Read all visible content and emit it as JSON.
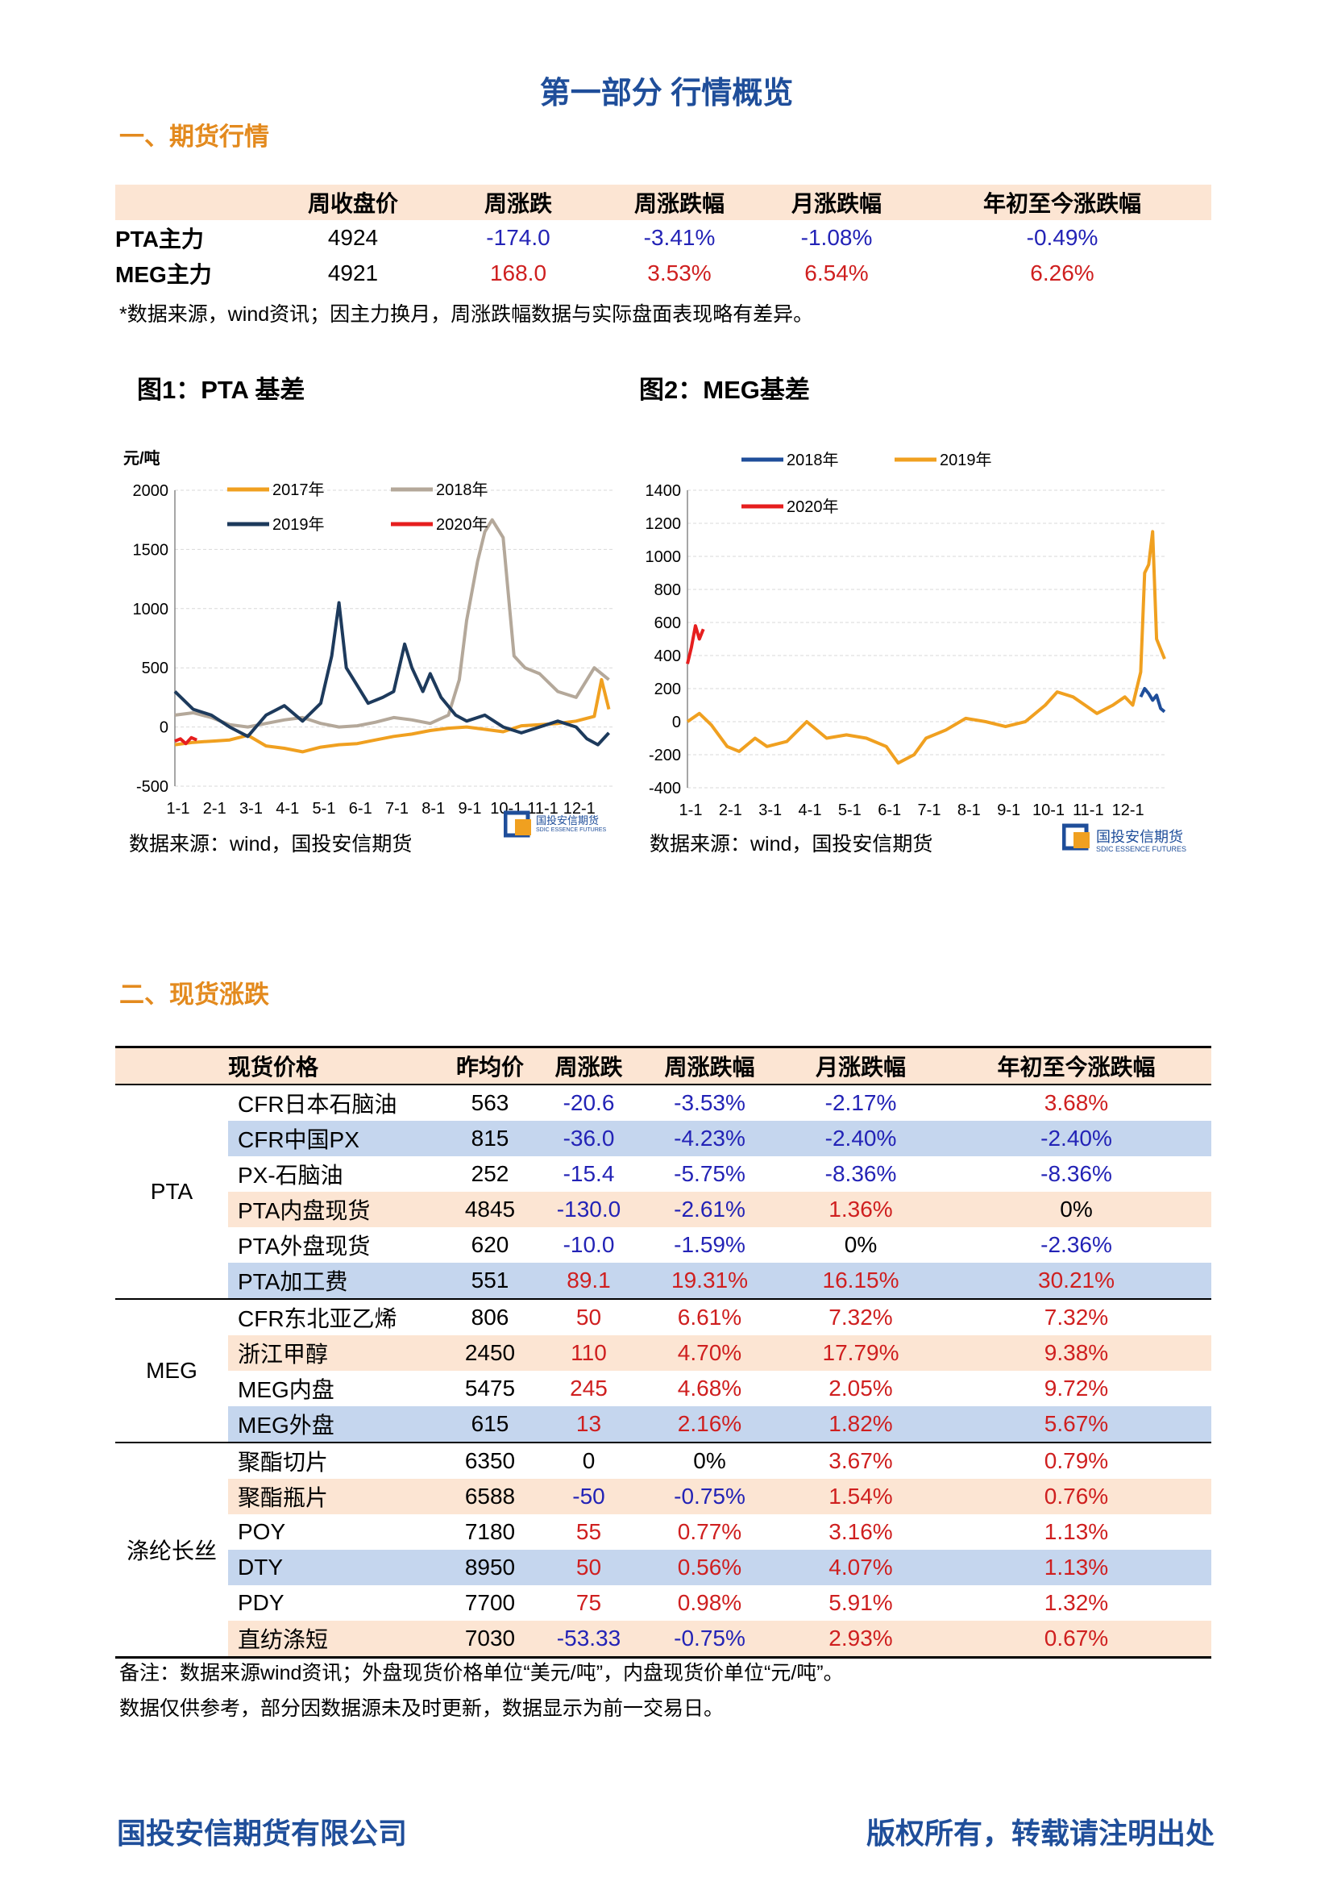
{
  "page": {
    "part_title": "第一部分  行情概览",
    "section1_title": "一、期货行情",
    "section2_title": "二、现货涨跌",
    "footer_left": "国投安信期货有限公司",
    "footer_right": "版权所有，转载请注明出处"
  },
  "futures": {
    "headers": [
      "",
      "周收盘价",
      "周涨跌",
      "周涨跌幅",
      "月涨跌幅",
      "年初至今涨跌幅"
    ],
    "rows": [
      {
        "name": "PTA主力",
        "close": "4924",
        "chg": "-174.0",
        "chg_pct": "-3.41%",
        "mon_pct": "-1.08%",
        "ytd_pct": "-0.49%"
      },
      {
        "name": "MEG主力",
        "close": "4921",
        "chg": "168.0",
        "chg_pct": "3.53%",
        "mon_pct": "6.54%",
        "ytd_pct": "6.26%"
      }
    ],
    "note": "*数据来源，wind资讯；因主力换月，周涨跌幅数据与实际盘面表现略有差异。"
  },
  "figures": {
    "fig1_title": "图1：PTA 基差",
    "fig2_title": "图2：MEG基差",
    "source": "数据来源：wind，国投安信期货",
    "logo_text": "国投安信期货",
    "logo_sub": "SDIC ESSENCE FUTURES"
  },
  "chart_data": [
    {
      "type": "line",
      "title": "图1：PTA 基差",
      "ylabel": "元/吨",
      "ylim": [
        -500,
        2000
      ],
      "yticks": [
        -500,
        0,
        500,
        1000,
        1500,
        2000
      ],
      "xticks": [
        "1-1",
        "2-1",
        "3-1",
        "4-1",
        "5-1",
        "6-1",
        "7-1",
        "8-1",
        "9-1",
        "10-1",
        "11-1",
        "12-1"
      ],
      "legend": "top",
      "grid": true,
      "series": [
        {
          "name": "2017年",
          "color": "#f0a020",
          "x": [
            0,
            0.5,
            1,
            1.5,
            2,
            2.5,
            3,
            3.5,
            4,
            4.5,
            5,
            5.5,
            6,
            6.5,
            7,
            7.5,
            8,
            8.5,
            9,
            9.5,
            10,
            10.5,
            11,
            11.5,
            11.7,
            11.9
          ],
          "y": [
            -150,
            -130,
            -120,
            -110,
            -70,
            -160,
            -180,
            -210,
            -170,
            -150,
            -140,
            -110,
            -80,
            -60,
            -30,
            -10,
            0,
            -20,
            -40,
            10,
            20,
            30,
            50,
            90,
            400,
            150
          ]
        },
        {
          "name": "2018年",
          "color": "#b4a89a",
          "x": [
            0,
            0.5,
            1,
            1.5,
            2,
            2.5,
            3,
            3.5,
            4,
            4.5,
            5,
            5.5,
            6,
            6.5,
            7,
            7.5,
            7.8,
            8,
            8.3,
            8.5,
            8.7,
            9,
            9.3,
            9.6,
            10,
            10.5,
            11,
            11.5,
            11.9
          ],
          "y": [
            100,
            120,
            80,
            20,
            0,
            30,
            60,
            80,
            30,
            0,
            10,
            40,
            80,
            60,
            30,
            100,
            400,
            900,
            1400,
            1650,
            1750,
            1600,
            600,
            500,
            450,
            300,
            250,
            500,
            400
          ]
        },
        {
          "name": "2019年",
          "color": "#1d3a5c",
          "x": [
            0,
            0.5,
            1,
            1.5,
            2,
            2.5,
            3,
            3.5,
            4,
            4.3,
            4.5,
            4.7,
            5,
            5.3,
            5.7,
            6,
            6.3,
            6.5,
            6.8,
            7,
            7.3,
            7.7,
            8,
            8.5,
            9,
            9.5,
            10,
            10.5,
            11,
            11.3,
            11.6,
            11.9
          ],
          "y": [
            300,
            150,
            100,
            0,
            -80,
            100,
            180,
            50,
            200,
            600,
            1050,
            500,
            350,
            200,
            250,
            300,
            700,
            500,
            300,
            450,
            250,
            100,
            50,
            100,
            0,
            -50,
            0,
            50,
            0,
            -100,
            -150,
            -50
          ]
        },
        {
          "name": "2020年",
          "color": "#e61e1e",
          "x": [
            0,
            0.15,
            0.3,
            0.45,
            0.6
          ],
          "y": [
            -120,
            -100,
            -140,
            -90,
            -110
          ]
        }
      ]
    },
    {
      "type": "line",
      "title": "图2：MEG基差",
      "ylim": [
        -400,
        1400
      ],
      "yticks": [
        -400,
        -200,
        0,
        200,
        400,
        600,
        800,
        1000,
        1200,
        1400
      ],
      "xticks": [
        "1-1",
        "2-1",
        "3-1",
        "4-1",
        "5-1",
        "6-1",
        "7-1",
        "8-1",
        "9-1",
        "10-1",
        "11-1",
        "12-1"
      ],
      "legend": "top",
      "grid": true,
      "series": [
        {
          "name": "2018年",
          "color": "#1f4e9a",
          "x": [
            11.4,
            11.5,
            11.6,
            11.7,
            11.8,
            11.9,
            12.0
          ],
          "y": [
            150,
            200,
            170,
            130,
            160,
            80,
            60
          ]
        },
        {
          "name": "2019年",
          "color": "#f0a020",
          "x": [
            0,
            0.3,
            0.6,
            1,
            1.3,
            1.7,
            2,
            2.5,
            3,
            3.5,
            4,
            4.5,
            5,
            5.3,
            5.7,
            6,
            6.5,
            7,
            7.5,
            8,
            8.5,
            9,
            9.3,
            9.7,
            10,
            10.3,
            10.7,
            11,
            11.2,
            11.4,
            11.5,
            11.6,
            11.7,
            11.8,
            12
          ],
          "y": [
            0,
            50,
            -20,
            -150,
            -180,
            -100,
            -150,
            -120,
            0,
            -100,
            -80,
            -100,
            -150,
            -250,
            -200,
            -100,
            -50,
            20,
            0,
            -30,
            0,
            100,
            180,
            150,
            100,
            50,
            100,
            150,
            100,
            300,
            900,
            950,
            1150,
            500,
            380
          ]
        },
        {
          "name": "2020年",
          "color": "#e61e1e",
          "x": [
            0,
            0.1,
            0.2,
            0.3,
            0.4
          ],
          "y": [
            350,
            450,
            580,
            500,
            560
          ]
        }
      ]
    }
  ],
  "spot": {
    "headers": [
      "",
      "现货价格",
      "昨均价",
      "周涨跌",
      "周涨跌幅",
      "月涨跌幅",
      "年初至今涨跌幅"
    ],
    "groups": [
      {
        "name": "PTA",
        "rows": [
          {
            "item": "CFR日本石脑油",
            "prev": "563",
            "chg": "-20.6",
            "chg_pct": "-3.53%",
            "mon": "-2.17%",
            "ytd": "3.68%"
          },
          {
            "item": "CFR中国PX",
            "prev": "815",
            "chg": "-36.0",
            "chg_pct": "-4.23%",
            "mon": "-2.40%",
            "ytd": "-2.40%"
          },
          {
            "item": "PX-石脑油",
            "prev": "252",
            "chg": "-15.4",
            "chg_pct": "-5.75%",
            "mon": "-8.36%",
            "ytd": "-8.36%"
          },
          {
            "item": "PTA内盘现货",
            "prev": "4845",
            "chg": "-130.0",
            "chg_pct": "-2.61%",
            "mon": "1.36%",
            "ytd": "0%"
          },
          {
            "item": "PTA外盘现货",
            "prev": "620",
            "chg": "-10.0",
            "chg_pct": "-1.59%",
            "mon": "0%",
            "ytd": "-2.36%"
          },
          {
            "item": "PTA加工费",
            "prev": "551",
            "chg": "89.1",
            "chg_pct": "19.31%",
            "mon": "16.15%",
            "ytd": "30.21%"
          }
        ]
      },
      {
        "name": "MEG",
        "rows": [
          {
            "item": "CFR东北亚乙烯",
            "prev": "806",
            "chg": "50",
            "chg_pct": "6.61%",
            "mon": "7.32%",
            "ytd": "7.32%"
          },
          {
            "item": "浙江甲醇",
            "prev": "2450",
            "chg": "110",
            "chg_pct": "4.70%",
            "mon": "17.79%",
            "ytd": "9.38%"
          },
          {
            "item": "MEG内盘",
            "prev": "5475",
            "chg": "245",
            "chg_pct": "4.68%",
            "mon": "2.05%",
            "ytd": "9.72%"
          },
          {
            "item": "MEG外盘",
            "prev": "615",
            "chg": "13",
            "chg_pct": "2.16%",
            "mon": "1.82%",
            "ytd": "5.67%"
          }
        ]
      },
      {
        "name": "涤纶长丝",
        "rows": [
          {
            "item": "聚酯切片",
            "prev": "6350",
            "chg": "0",
            "chg_pct": "0%",
            "mon": "3.67%",
            "ytd": "0.79%"
          },
          {
            "item": "聚酯瓶片",
            "prev": "6588",
            "chg": "-50",
            "chg_pct": "-0.75%",
            "mon": "1.54%",
            "ytd": "0.76%"
          },
          {
            "item": "POY",
            "prev": "7180",
            "chg": "55",
            "chg_pct": "0.77%",
            "mon": "3.16%",
            "ytd": "1.13%"
          },
          {
            "item": "DTY",
            "prev": "8950",
            "chg": "50",
            "chg_pct": "0.56%",
            "mon": "4.07%",
            "ytd": "1.13%"
          },
          {
            "item": "PDY",
            "prev": "7700",
            "chg": "75",
            "chg_pct": "0.98%",
            "mon": "5.91%",
            "ytd": "1.32%"
          },
          {
            "item": "直纺涤短",
            "prev": "7030",
            "chg": "-53.33",
            "chg_pct": "-0.75%",
            "mon": "2.93%",
            "ytd": "0.67%"
          }
        ]
      }
    ],
    "note1": "备注：数据来源wind资讯；外盘现货价格单位“美元/吨”，内盘现货价单位“元/吨”。",
    "note2": "数据仅供参考，部分因数据源未及时更新，数据显示为前一交易日。"
  }
}
